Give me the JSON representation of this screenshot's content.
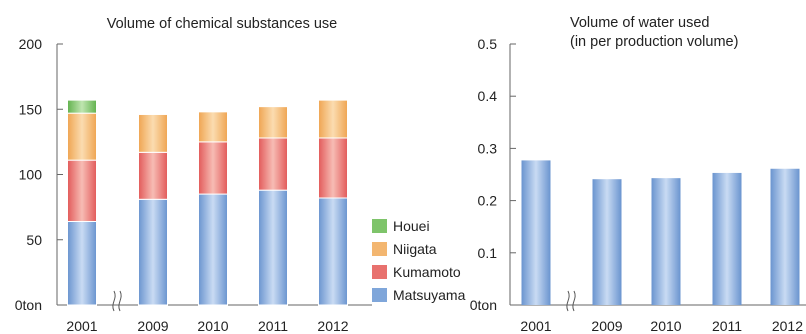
{
  "chart_data": [
    {
      "type": "bar",
      "stacked": true,
      "title": "Volume of chemical substances use",
      "categories": [
        "2001",
        "2009",
        "2010",
        "2011",
        "2012"
      ],
      "series": [
        {
          "name": "Matsuyama",
          "values": [
            64,
            81,
            85,
            88,
            82
          ]
        },
        {
          "name": "Kumamoto",
          "values": [
            47,
            36,
            40,
            40,
            46
          ]
        },
        {
          "name": "Niigata",
          "values": [
            36,
            29,
            23,
            24,
            29
          ]
        },
        {
          "name": "Houei",
          "values": [
            10,
            0,
            0,
            0,
            0
          ]
        }
      ],
      "ylim": [
        0,
        200
      ],
      "yticks": [
        "0ton",
        "50",
        "100",
        "150",
        "200"
      ],
      "axis_break_after": "2001",
      "legend_position": "right",
      "colors": {
        "Houei": "#7ec46a",
        "Niigata": "#f3b670",
        "Kumamoto": "#e8716e",
        "Matsuyama": "#7fa6da"
      }
    },
    {
      "type": "bar",
      "title": "Volume of water used\n(in per production volume)",
      "title_lines": [
        "Volume of water used",
        "(in per production volume)"
      ],
      "categories": [
        "2001",
        "2009",
        "2010",
        "2011",
        "2012"
      ],
      "values": [
        0.277,
        0.241,
        0.243,
        0.253,
        0.261
      ],
      "ylim": [
        0,
        0.5
      ],
      "yticks": [
        "0ton",
        "0.1",
        "0.2",
        "0.3",
        "0.4",
        "0.5"
      ],
      "axis_break_after": "2001",
      "color": "#7fa6da"
    }
  ]
}
